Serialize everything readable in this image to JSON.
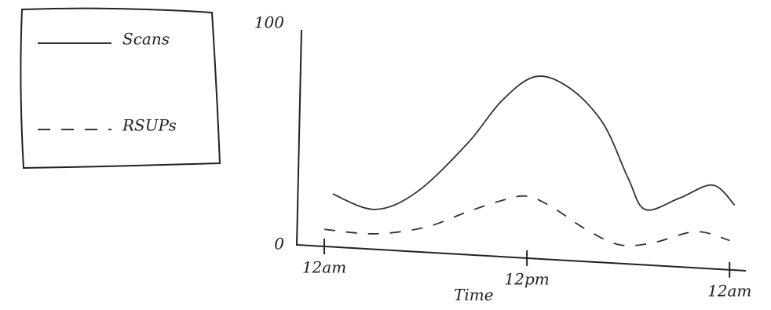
{
  "chart_data": {
    "type": "line",
    "x_label": "Time",
    "xlim": [
      0,
      24.5
    ],
    "ylim": [
      0,
      100
    ],
    "xticks": [
      {
        "value": 0,
        "label": "12am"
      },
      {
        "value": 12,
        "label": "12pm"
      },
      {
        "value": 24,
        "label": "12am"
      }
    ],
    "yticks": [
      0,
      100
    ],
    "legend": "outside-left",
    "series": [
      {
        "name": "Scans",
        "color": "#333333",
        "dash": false,
        "x": [
          0.5,
          3,
          5.5,
          8.5,
          10.5,
          12.5,
          14.5,
          16.5,
          18,
          19,
          21,
          23,
          24.3
        ],
        "values": [
          23,
          16,
          24,
          46,
          65,
          76,
          71,
          55,
          30,
          16,
          21,
          27,
          18
        ]
      },
      {
        "name": "RSUPs",
        "color": "#333333",
        "dash": true,
        "x": [
          0,
          3,
          6,
          8.5,
          10.5,
          12,
          13.5,
          15.5,
          17.5,
          19.5,
          22,
          24
        ],
        "values": [
          7,
          5,
          8,
          15,
          20,
          22,
          17,
          7,
          0,
          1,
          6,
          2
        ]
      }
    ]
  }
}
